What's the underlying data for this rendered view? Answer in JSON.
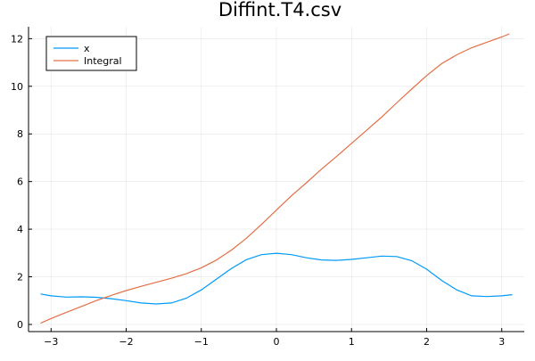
{
  "chart_data": {
    "type": "line",
    "title": "Diffint.T4.csv",
    "xlabel": "",
    "ylabel": "",
    "xlim": [
      -3.3,
      3.3
    ],
    "ylim": [
      -0.3,
      12.5
    ],
    "xticks": [
      -3,
      -2,
      -1,
      0,
      1,
      2,
      3
    ],
    "xtick_labels": [
      "−3",
      "−2",
      "−1",
      "0",
      "1",
      "2",
      "3"
    ],
    "yticks": [
      0,
      2,
      4,
      6,
      8,
      10,
      12
    ],
    "ytick_labels": [
      "0",
      "2",
      "4",
      "6",
      "8",
      "10",
      "12"
    ],
    "grid": true,
    "legend_position": "top-left",
    "series": [
      {
        "name": "x",
        "color": "#009af9",
        "x": [
          -3.14,
          -3.0,
          -2.8,
          -2.6,
          -2.4,
          -2.2,
          -2.0,
          -1.8,
          -1.6,
          -1.4,
          -1.2,
          -1.0,
          -0.8,
          -0.6,
          -0.4,
          -0.2,
          0.0,
          0.2,
          0.4,
          0.6,
          0.8,
          1.0,
          1.2,
          1.4,
          1.6,
          1.8,
          2.0,
          2.2,
          2.4,
          2.6,
          2.8,
          3.0,
          3.14
        ],
        "y": [
          1.28,
          1.2,
          1.15,
          1.16,
          1.14,
          1.08,
          1.0,
          0.9,
          0.86,
          0.9,
          1.1,
          1.45,
          1.9,
          2.35,
          2.72,
          2.93,
          2.99,
          2.93,
          2.8,
          2.71,
          2.69,
          2.73,
          2.8,
          2.87,
          2.85,
          2.68,
          2.32,
          1.85,
          1.45,
          1.2,
          1.17,
          1.2,
          1.25
        ]
      },
      {
        "name": "Integral",
        "color": "#e26f46",
        "x": [
          -3.14,
          -3.0,
          -2.8,
          -2.6,
          -2.4,
          -2.2,
          -2.0,
          -1.8,
          -1.6,
          -1.4,
          -1.2,
          -1.0,
          -0.8,
          -0.6,
          -0.4,
          -0.2,
          0.0,
          0.2,
          0.4,
          0.6,
          0.8,
          1.0,
          1.2,
          1.4,
          1.6,
          1.8,
          2.0,
          2.2,
          2.4,
          2.6,
          2.8,
          3.0,
          3.1
        ],
        "y": [
          0.05,
          0.25,
          0.5,
          0.75,
          1.0,
          1.22,
          1.42,
          1.6,
          1.77,
          1.94,
          2.13,
          2.38,
          2.7,
          3.12,
          3.62,
          4.2,
          4.8,
          5.4,
          5.95,
          6.52,
          7.05,
          7.6,
          8.15,
          8.7,
          9.3,
          9.88,
          10.45,
          10.95,
          11.32,
          11.62,
          11.85,
          12.07,
          12.2
        ]
      }
    ]
  }
}
